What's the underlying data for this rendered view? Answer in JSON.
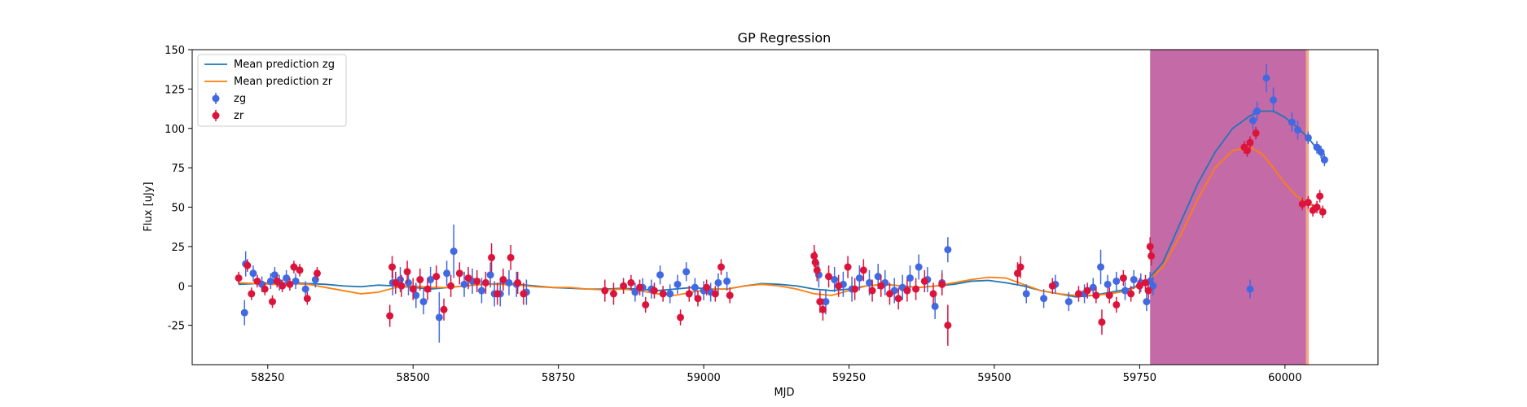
{
  "chart_data": {
    "type": "scatter",
    "title": "GP Regression",
    "xlabel": "MJD",
    "ylabel": "Flux [uJy]",
    "xlim": [
      58120,
      60160
    ],
    "ylim": [
      -50,
      150
    ],
    "xticks": [
      58250,
      58500,
      58750,
      59000,
      59250,
      59500,
      59750,
      60000
    ],
    "yticks": [
      -25,
      0,
      25,
      50,
      75,
      100,
      125,
      150
    ],
    "legend_position": "top-left",
    "shaded_regions": [
      {
        "x_start": 59768,
        "x_end": 60036,
        "color": "#c46aa7"
      },
      {
        "x_start": 60036,
        "x_end": 60041,
        "color": "#f4a98c"
      }
    ],
    "series": [
      {
        "name": "Mean prediction zg",
        "kind": "line",
        "color": "#1f77b4",
        "x": [
          58200,
          58230,
          58260,
          58290,
          58320,
          58350,
          58380,
          58410,
          58440,
          58470,
          58500,
          58530,
          58560,
          58590,
          58620,
          58650,
          58680,
          58710,
          58740,
          58770,
          58800,
          58830,
          58860,
          58890,
          58920,
          58950,
          58980,
          59010,
          59040,
          59070,
          59100,
          59130,
          59160,
          59190,
          59220,
          59250,
          59280,
          59310,
          59340,
          59370,
          59400,
          59430,
          59460,
          59490,
          59520,
          59550,
          59580,
          59610,
          59640,
          59670,
          59700,
          59730,
          59760,
          59790,
          59820,
          59850,
          59880,
          59910,
          59940,
          59960,
          59980,
          60000,
          60020,
          60040,
          60070
        ],
        "y": [
          1,
          1.5,
          2,
          2,
          1.5,
          1,
          0,
          -0.5,
          0.5,
          0,
          -1,
          -2,
          -1,
          0,
          1,
          1.5,
          1,
          0,
          -1,
          -1.5,
          -2,
          -2,
          -1.5,
          -2,
          -3,
          -2,
          -1,
          -2,
          -2,
          0,
          1.5,
          1,
          0,
          -2,
          -3,
          -2,
          0,
          1,
          0,
          -1,
          0,
          1,
          3,
          3.5,
          2,
          0,
          -3,
          -5,
          -7,
          -6,
          -4,
          -2,
          2,
          15,
          40,
          65,
          85,
          100,
          108,
          111,
          111,
          107,
          101,
          94,
          80
        ]
      },
      {
        "name": "Mean prediction zr",
        "kind": "line",
        "color": "#ff7f0e",
        "x": [
          58200,
          58230,
          58260,
          58290,
          58320,
          58350,
          58380,
          58410,
          58440,
          58470,
          58500,
          58530,
          58560,
          58590,
          58620,
          58650,
          58680,
          58710,
          58740,
          58770,
          58800,
          58830,
          58860,
          58890,
          58920,
          58950,
          58980,
          59010,
          59040,
          59070,
          59100,
          59130,
          59160,
          59190,
          59220,
          59250,
          59280,
          59310,
          59340,
          59370,
          59400,
          59430,
          59460,
          59490,
          59520,
          59550,
          59580,
          59610,
          59640,
          59670,
          59700,
          59730,
          59760,
          59790,
          59820,
          59850,
          59880,
          59910,
          59940,
          59960,
          59980,
          60000,
          60020,
          60040,
          60070
        ],
        "y": [
          2,
          1.5,
          1,
          1.5,
          1,
          -1,
          -3,
          -5,
          -4,
          -1,
          0,
          -1,
          -1,
          0,
          1,
          1,
          0.5,
          -0.5,
          -1,
          -1,
          -2,
          -2.5,
          -2,
          -3,
          -5,
          -6,
          -4,
          -2,
          -2,
          0,
          1,
          0,
          -2,
          -5,
          -6,
          -3,
          0,
          1,
          0,
          -1,
          0,
          2,
          4,
          5.5,
          5,
          1,
          -3,
          -5,
          -6,
          -6,
          -5,
          -3,
          2,
          12,
          32,
          55,
          75,
          86,
          88,
          84,
          75,
          65,
          57,
          52,
          48
        ]
      },
      {
        "name": "zg",
        "kind": "errorbar",
        "color": "#4169e1",
        "x": [
          58210,
          58212,
          58225,
          58240,
          58255,
          58262,
          58270,
          58282,
          58298,
          58315,
          58332,
          58465,
          58478,
          58492,
          58505,
          58518,
          58530,
          58545,
          58558,
          58570,
          58588,
          58602,
          58618,
          58633,
          58640,
          58650,
          58665,
          58678,
          58695,
          58882,
          58895,
          58910,
          58925,
          58942,
          58955,
          58970,
          58985,
          59000,
          59012,
          59025,
          59040,
          59198,
          59210,
          59225,
          59240,
          59255,
          59268,
          59285,
          59300,
          59312,
          59328,
          59342,
          59355,
          59370,
          59385,
          59398,
          59410,
          59420,
          59555,
          59585,
          59605,
          59628,
          59655,
          59670,
          59683,
          59695,
          59710,
          59725,
          59740,
          59752,
          59762,
          59768,
          59773,
          59940,
          59945,
          59952,
          59968,
          59980,
          60012,
          60022,
          60040,
          60055,
          60062,
          60068
        ],
        "y": [
          -17,
          14,
          8,
          1,
          3,
          7,
          2,
          5,
          3,
          -2,
          4,
          2,
          4,
          2,
          -6,
          -10,
          4,
          -20,
          8,
          22,
          1,
          3,
          -3,
          7,
          -5,
          -5,
          2,
          1,
          -4,
          -4,
          -1,
          -2,
          7,
          -5,
          1,
          9,
          -1,
          -3,
          -4,
          2,
          3,
          7,
          -10,
          4,
          1,
          -2,
          5,
          2,
          6,
          2,
          -3,
          -1,
          5,
          12,
          4,
          -13,
          2,
          23,
          -5,
          -8,
          1,
          -10,
          -5,
          -1,
          12,
          1,
          3,
          -3,
          4,
          2,
          -10,
          3,
          0,
          -2,
          105,
          111,
          132,
          118,
          104,
          99,
          94,
          88,
          85,
          80
        ],
        "yerr": [
          8,
          8,
          5,
          5,
          5,
          5,
          5,
          5,
          5,
          5,
          5,
          8,
          8,
          8,
          8,
          8,
          8,
          16,
          8,
          17,
          8,
          8,
          8,
          8,
          8,
          8,
          8,
          8,
          8,
          6,
          6,
          6,
          6,
          6,
          6,
          6,
          6,
          6,
          6,
          6,
          6,
          8,
          8,
          8,
          8,
          8,
          8,
          8,
          8,
          8,
          8,
          8,
          8,
          8,
          8,
          8,
          8,
          8,
          6,
          6,
          6,
          6,
          6,
          6,
          11,
          6,
          6,
          6,
          6,
          6,
          6,
          6,
          6,
          6,
          6,
          6,
          9,
          8,
          6,
          6,
          4,
          4,
          4,
          4
        ]
      },
      {
        "name": "zr",
        "kind": "errorbar",
        "color": "#dc143c",
        "x": [
          58200,
          58215,
          58222,
          58232,
          58245,
          58258,
          58266,
          58275,
          58288,
          58295,
          58305,
          58318,
          58335,
          58460,
          58464,
          58470,
          58480,
          58490,
          58500,
          58512,
          58525,
          58540,
          58553,
          58565,
          58580,
          58595,
          58610,
          58625,
          58635,
          58645,
          58655,
          58668,
          58680,
          58690,
          58830,
          58845,
          58862,
          58875,
          58890,
          58900,
          58915,
          58930,
          58960,
          58975,
          58990,
          59005,
          59020,
          59030,
          59045,
          59190,
          59192,
          59195,
          59200,
          59205,
          59215,
          59232,
          59248,
          59260,
          59275,
          59290,
          59305,
          59320,
          59335,
          59350,
          59365,
          59380,
          59395,
          59410,
          59420,
          59540,
          59545,
          59600,
          59645,
          59660,
          59675,
          59685,
          59698,
          59710,
          59722,
          59735,
          59750,
          59760,
          59765,
          59768,
          59770,
          59930,
          59935,
          59940,
          59950,
          60030,
          60040,
          60048,
          60055,
          60060,
          60065
        ],
        "y": [
          5,
          13,
          -5,
          3,
          -2,
          -10,
          3,
          0,
          1,
          12,
          10,
          -8,
          8,
          -19,
          12,
          2,
          0,
          9,
          -2,
          4,
          -2,
          6,
          -15,
          0,
          8,
          5,
          3,
          2,
          18,
          -5,
          4,
          18,
          2,
          -5,
          -3,
          -5,
          0,
          2,
          -1,
          -12,
          -3,
          -5,
          -20,
          -5,
          -8,
          -1,
          -5,
          12,
          -6,
          19,
          15,
          10,
          -10,
          -15,
          6,
          0,
          12,
          -2,
          10,
          -3,
          0,
          -5,
          -8,
          -3,
          -2,
          3,
          -5,
          1,
          -25,
          8,
          12,
          0,
          -5,
          -3,
          -6,
          -23,
          -6,
          -12,
          5,
          -5,
          0,
          2,
          -3,
          25,
          19,
          88,
          86,
          91,
          97,
          52,
          53,
          48,
          50,
          57,
          47
        ],
        "yerr": [
          4,
          4,
          4,
          4,
          4,
          4,
          4,
          4,
          4,
          4,
          4,
          4,
          4,
          7,
          7,
          7,
          7,
          7,
          7,
          7,
          7,
          7,
          7,
          7,
          7,
          7,
          7,
          7,
          9,
          7,
          7,
          8,
          7,
          7,
          7,
          7,
          5,
          5,
          5,
          5,
          5,
          5,
          5,
          5,
          5,
          5,
          5,
          5,
          5,
          7,
          7,
          7,
          7,
          7,
          7,
          7,
          7,
          7,
          7,
          7,
          7,
          7,
          7,
          7,
          7,
          7,
          7,
          7,
          13,
          7,
          7,
          5,
          5,
          5,
          5,
          8,
          5,
          5,
          5,
          5,
          5,
          5,
          5,
          6,
          6,
          4,
          4,
          4,
          4,
          4,
          4,
          4,
          4,
          4,
          4
        ]
      }
    ]
  }
}
